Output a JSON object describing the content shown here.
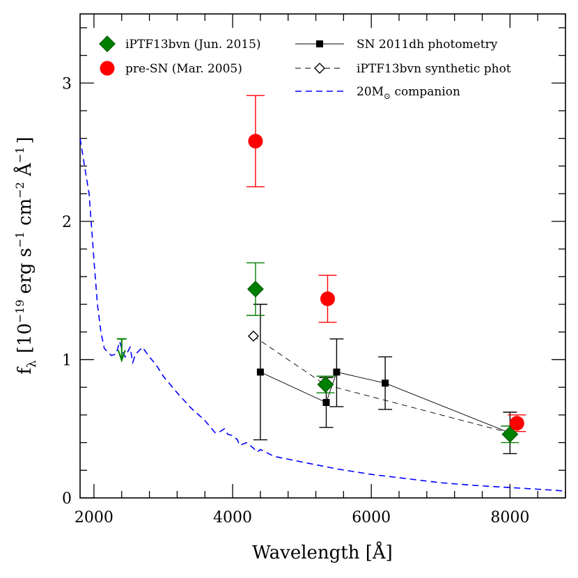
{
  "chart_data": {
    "type": "scatter",
    "xlabel": "Wavelength [Å]",
    "ylabel": "f_λ [10^-19 erg s^-1 cm^-2 Å^-1]",
    "ylabel_parts": {
      "f": "f",
      "lambda": "λ",
      "open": "[10",
      "exp1": "−19",
      "erg_s": " erg s",
      "exp2": "−1",
      "cm": " cm",
      "exp3": "−2",
      "A": " Å",
      "exp4": "−1",
      "close": "]"
    },
    "xlim": [
      1800,
      8800
    ],
    "ylim": [
      0,
      3.5
    ],
    "xticks": [
      2000,
      4000,
      6000,
      8000
    ],
    "yticks": [
      0,
      1,
      2,
      3
    ],
    "grid": false,
    "legend_position": "top",
    "series": [
      {
        "name": "iPTF13bvn (Jun. 2015)",
        "kind": "points",
        "marker": "diamond-filled",
        "color": "#008000",
        "points": [
          {
            "x": 4330,
            "y": 1.51,
            "ylow": 1.32,
            "yhigh": 1.7
          },
          {
            "x": 5340,
            "y": 0.82,
            "ylow": 0.76,
            "yhigh": 0.88
          },
          {
            "x": 8000,
            "y": 0.46,
            "ylow": 0.4,
            "yhigh": 0.52
          }
        ]
      },
      {
        "name": "pre-SN (Mar. 2005)",
        "kind": "points",
        "marker": "circle-filled",
        "color": "#ff0000",
        "points": [
          {
            "x": 4330,
            "y": 2.58,
            "ylow": 2.25,
            "yhigh": 2.91
          },
          {
            "x": 5370,
            "y": 1.44,
            "ylow": 1.27,
            "yhigh": 1.61
          },
          {
            "x": 8100,
            "y": 0.54,
            "ylow": 0.48,
            "yhigh": 0.6
          }
        ]
      },
      {
        "name": "SN 2011dh photometry",
        "kind": "line-points",
        "marker": "square-filled",
        "color": "#000000",
        "points": [
          {
            "x": 4400,
            "y": 0.91,
            "ylow": 0.42,
            "yhigh": 1.4
          },
          {
            "x": 5350,
            "y": 0.69,
            "ylow": 0.51,
            "yhigh": 0.87
          },
          {
            "x": 5500,
            "y": 0.91,
            "ylow": 0.66,
            "yhigh": 1.15
          },
          {
            "x": 6200,
            "y": 0.83,
            "ylow": 0.64,
            "yhigh": 1.02
          },
          {
            "x": 8000,
            "y": 0.47,
            "ylow": 0.32,
            "yhigh": 0.62
          }
        ]
      },
      {
        "name": "iPTF13bvn synthetic phot",
        "kind": "dashed-line-points",
        "marker": "diamond-open",
        "color": "#000000",
        "points": [
          {
            "x": 4300,
            "y": 1.17
          },
          {
            "x": 5330,
            "y": 0.82
          },
          {
            "x": 8000,
            "y": 0.47
          }
        ]
      },
      {
        "name": "20M⊙ companion",
        "name_parts": {
          "pre": "20M",
          "sub": "⊙",
          "post": " companion"
        },
        "kind": "dashed-line",
        "color": "#0000ff",
        "points": [
          {
            "x": 1800,
            "y": 2.6
          },
          {
            "x": 1880,
            "y": 2.35
          },
          {
            "x": 1930,
            "y": 2.2
          },
          {
            "x": 1960,
            "y": 2.0
          },
          {
            "x": 2000,
            "y": 1.72
          },
          {
            "x": 2050,
            "y": 1.4
          },
          {
            "x": 2100,
            "y": 1.2
          },
          {
            "x": 2150,
            "y": 1.08
          },
          {
            "x": 2250,
            "y": 1.03
          },
          {
            "x": 2320,
            "y": 1.04
          },
          {
            "x": 2370,
            "y": 1.13
          },
          {
            "x": 2420,
            "y": 1.05
          },
          {
            "x": 2450,
            "y": 1.02
          },
          {
            "x": 2520,
            "y": 1.09
          },
          {
            "x": 2560,
            "y": 0.98
          },
          {
            "x": 2600,
            "y": 1.04
          },
          {
            "x": 2700,
            "y": 1.09
          },
          {
            "x": 2800,
            "y": 1.02
          },
          {
            "x": 2900,
            "y": 0.96
          },
          {
            "x": 3000,
            "y": 0.88
          },
          {
            "x": 3200,
            "y": 0.76
          },
          {
            "x": 3400,
            "y": 0.65
          },
          {
            "x": 3600,
            "y": 0.56
          },
          {
            "x": 3750,
            "y": 0.47
          },
          {
            "x": 3820,
            "y": 0.48
          },
          {
            "x": 3880,
            "y": 0.5
          },
          {
            "x": 3930,
            "y": 0.46
          },
          {
            "x": 4000,
            "y": 0.45
          },
          {
            "x": 4070,
            "y": 0.42
          },
          {
            "x": 4100,
            "y": 0.38
          },
          {
            "x": 4200,
            "y": 0.4
          },
          {
            "x": 4300,
            "y": 0.36
          },
          {
            "x": 4350,
            "y": 0.33
          },
          {
            "x": 4400,
            "y": 0.35
          },
          {
            "x": 4600,
            "y": 0.3
          },
          {
            "x": 4800,
            "y": 0.28
          },
          {
            "x": 5000,
            "y": 0.26
          },
          {
            "x": 5500,
            "y": 0.21
          },
          {
            "x": 6000,
            "y": 0.17
          },
          {
            "x": 6500,
            "y": 0.14
          },
          {
            "x": 7000,
            "y": 0.11
          },
          {
            "x": 7500,
            "y": 0.09
          },
          {
            "x": 8000,
            "y": 0.075
          },
          {
            "x": 8500,
            "y": 0.06
          },
          {
            "x": 8800,
            "y": 0.05
          }
        ]
      }
    ],
    "upper_limit": {
      "series": "iPTF13bvn (Jun. 2015)",
      "x": 2400,
      "y": 1.15,
      "color": "#008000"
    }
  }
}
